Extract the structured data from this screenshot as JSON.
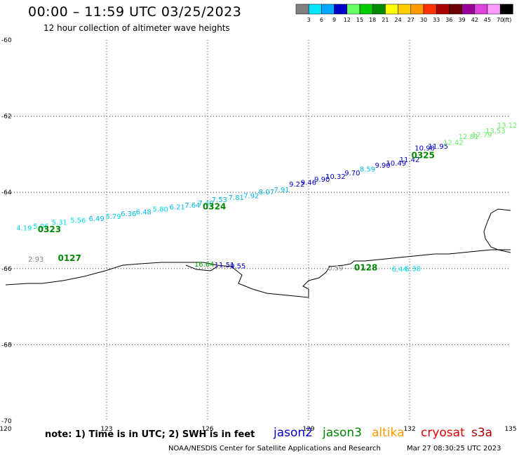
{
  "header": {
    "title": "00:00 – 11:59 UTC 03/25/2023",
    "subtitle": "12 hour collection of altimeter wave heights"
  },
  "legend_scale": {
    "ticks": [
      "3",
      "6",
      "9",
      "12",
      "15",
      "18",
      "21",
      "24",
      "27",
      "30",
      "33",
      "36",
      "39",
      "42",
      "45",
      "70"
    ],
    "unit": "(ft)",
    "colors": [
      "#808080",
      "#00e5ff",
      "#00a8ff",
      "#0000cc",
      "#66ff66",
      "#00cc00",
      "#008800",
      "#ffff00",
      "#ffcc00",
      "#ff9900",
      "#ff3300",
      "#aa0000",
      "#700000",
      "#990099",
      "#dd44dd",
      "#ff99ff",
      "#000000"
    ]
  },
  "footer": {
    "note": "note: 1) Time is in UTC; 2) SWH is in feet",
    "credit": "NOAA/NESDIS Center for Satellite Applications and Research",
    "timestamp": "Mar 27 08:30:25 UTC 2023",
    "satellites": [
      {
        "name": "jason2",
        "color": "#0000cc"
      },
      {
        "name": "jason3",
        "color": "#008800"
      },
      {
        "name": "altika",
        "color": "#ff9900"
      },
      {
        "name": "cryosat",
        "color": "#dd0000"
      },
      {
        "name": "s3a",
        "color": "#aa0000"
      }
    ]
  },
  "chart_data": {
    "type": "scatter",
    "xlim": [
      120,
      135
    ],
    "ylim": [
      -70,
      -60
    ],
    "x_ticks": [
      "120",
      "123",
      "126",
      "129",
      "132",
      "135"
    ],
    "y_ticks": [
      "-60",
      "-62",
      "-64",
      "-66",
      "-68",
      "-70"
    ],
    "grid": "dotted",
    "track_labels": [
      {
        "text": "0323",
        "lon": 121.3,
        "lat": -65.05,
        "color": "#008800"
      },
      {
        "text": "0324",
        "lon": 126.2,
        "lat": -64.45,
        "color": "#008800"
      },
      {
        "text": "0325",
        "lon": 132.4,
        "lat": -63.1,
        "color": "#008800"
      },
      {
        "text": "0127",
        "lon": 121.9,
        "lat": -65.8,
        "color": "#008800"
      },
      {
        "text": "0128",
        "lon": 130.7,
        "lat": -66.05,
        "color": "#008800"
      }
    ],
    "points": [
      {
        "text": "4.19",
        "lon": 120.55,
        "lat": -65.0,
        "color": "#00d8e8"
      },
      {
        "text": "5.06",
        "lon": 121.05,
        "lat": -64.95,
        "color": "#00d8e8"
      },
      {
        "text": "5.31",
        "lon": 121.6,
        "lat": -64.85,
        "color": "#00d8e8"
      },
      {
        "text": "5.56",
        "lon": 122.15,
        "lat": -64.8,
        "color": "#00d8e8"
      },
      {
        "text": "6.49",
        "lon": 122.7,
        "lat": -64.75,
        "color": "#00b8e8"
      },
      {
        "text": "5.79",
        "lon": 123.2,
        "lat": -64.7,
        "color": "#00d8e8"
      },
      {
        "text": "6.36",
        "lon": 123.65,
        "lat": -64.62,
        "color": "#00b8e8"
      },
      {
        "text": "6.48",
        "lon": 124.1,
        "lat": -64.58,
        "color": "#00b8e8"
      },
      {
        "text": "5.80",
        "lon": 124.6,
        "lat": -64.5,
        "color": "#00d8e8"
      },
      {
        "text": "6.21",
        "lon": 125.1,
        "lat": -64.45,
        "color": "#00b8e8"
      },
      {
        "text": "7.64",
        "lon": 125.55,
        "lat": -64.4,
        "color": "#00b8e8"
      },
      {
        "text": "7.49",
        "lon": 125.95,
        "lat": -64.35,
        "color": "#00b8e8"
      },
      {
        "text": "7.53",
        "lon": 126.35,
        "lat": -64.25,
        "color": "#00b8e8"
      },
      {
        "text": "7.81",
        "lon": 126.85,
        "lat": -64.2,
        "color": "#00b8e8"
      },
      {
        "text": "7.92",
        "lon": 127.3,
        "lat": -64.15,
        "color": "#00b8e8"
      },
      {
        "text": "8.07",
        "lon": 127.75,
        "lat": -64.05,
        "color": "#00b8e8"
      },
      {
        "text": "7.91",
        "lon": 128.2,
        "lat": -64.0,
        "color": "#00b8e8"
      },
      {
        "text": "9.22",
        "lon": 128.65,
        "lat": -63.85,
        "color": "#0000cc"
      },
      {
        "text": "9.46",
        "lon": 129.0,
        "lat": -63.8,
        "color": "#0000cc"
      },
      {
        "text": "9.90",
        "lon": 129.4,
        "lat": -63.72,
        "color": "#0000cc"
      },
      {
        "text": "10.32",
        "lon": 129.8,
        "lat": -63.65,
        "color": "#0000cc"
      },
      {
        "text": "9.70",
        "lon": 130.3,
        "lat": -63.55,
        "color": "#0000cc"
      },
      {
        "text": "8.59",
        "lon": 130.75,
        "lat": -63.45,
        "color": "#00b8e8"
      },
      {
        "text": "9.90",
        "lon": 131.2,
        "lat": -63.35,
        "color": "#0000cc"
      },
      {
        "text": "10.49",
        "lon": 131.6,
        "lat": -63.3,
        "color": "#0000cc"
      },
      {
        "text": "11.42",
        "lon": 132.0,
        "lat": -63.2,
        "color": "#0000cc"
      },
      {
        "text": "10.98",
        "lon": 132.45,
        "lat": -62.9,
        "color": "#0000cc"
      },
      {
        "text": "11.95",
        "lon": 132.85,
        "lat": -62.85,
        "color": "#0000cc"
      },
      {
        "text": "12.42",
        "lon": 133.3,
        "lat": -62.75,
        "color": "#66ee66"
      },
      {
        "text": "12.81",
        "lon": 133.75,
        "lat": -62.6,
        "color": "#66ee66"
      },
      {
        "text": "12.79",
        "lon": 134.15,
        "lat": -62.55,
        "color": "#66ee66"
      },
      {
        "text": "13.53",
        "lon": 134.55,
        "lat": -62.45,
        "color": "#66ee66"
      },
      {
        "text": "13.12",
        "lon": 134.9,
        "lat": -62.3,
        "color": "#66ee66"
      },
      {
        "text": "2.93",
        "lon": 120.9,
        "lat": -65.82,
        "color": "#808080"
      },
      {
        "text": "16.64",
        "lon": 125.9,
        "lat": -65.95,
        "color": "#00aa00"
      },
      {
        "text": "11.51",
        "lon": 126.5,
        "lat": -65.97,
        "color": "#0000cc"
      },
      {
        "text": "9.55",
        "lon": 126.9,
        "lat": -65.99,
        "color": "#0000cc"
      },
      {
        "text": "0.59",
        "lon": 129.8,
        "lat": -66.05,
        "color": "#808080"
      },
      {
        "text": "6.44",
        "lon": 131.7,
        "lat": -66.08,
        "color": "#00d8e8"
      },
      {
        "text": "5.38",
        "lon": 132.1,
        "lat": -66.07,
        "color": "#00d8e8"
      }
    ]
  }
}
